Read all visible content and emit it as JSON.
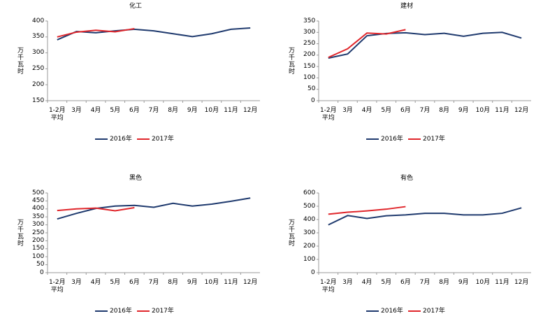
{
  "chart_data": [
    {
      "type": "line",
      "title": "化工",
      "y_label": "万千瓦时",
      "categories": [
        "1-2月 平均",
        "3月",
        "4月",
        "5月",
        "6月",
        "7月",
        "8月",
        "9月",
        "10月",
        "11月",
        "12月"
      ],
      "series": [
        {
          "name": "2016年",
          "color": "#1f3a6e",
          "values": [
            341,
            367,
            363,
            369,
            374,
            369,
            360,
            351,
            360,
            374,
            378
          ]
        },
        {
          "name": "2017年",
          "color": "#e0262b",
          "values": [
            350,
            365,
            371,
            366,
            376,
            null,
            null,
            null,
            null,
            null,
            null
          ]
        }
      ],
      "ylim": [
        150,
        400
      ],
      "yticks": [
        150,
        200,
        250,
        300,
        350,
        400
      ]
    },
    {
      "type": "line",
      "title": "建材",
      "y_label": "万千瓦时",
      "categories": [
        "1-2月 平均",
        "3月",
        "4月",
        "5月",
        "6月",
        "7月",
        "8月",
        "9月",
        "10月",
        "11月",
        "12月"
      ],
      "series": [
        {
          "name": "2016年",
          "color": "#1f3a6e",
          "values": [
            187,
            205,
            285,
            295,
            298,
            290,
            296,
            283,
            296,
            300,
            275
          ]
        },
        {
          "name": "2017年",
          "color": "#e0262b",
          "values": [
            190,
            228,
            297,
            293,
            312,
            null,
            null,
            null,
            null,
            null,
            null
          ]
        }
      ],
      "ylim": [
        0,
        350
      ],
      "yticks": [
        0,
        50,
        100,
        150,
        200,
        250,
        300,
        350
      ]
    },
    {
      "type": "line",
      "title": "黑色",
      "y_label": "万千瓦时",
      "categories": [
        "1-2月 平均",
        "3月",
        "4月",
        "5月",
        "6月",
        "7月",
        "8月",
        "9月",
        "10月",
        "11月",
        "12月"
      ],
      "series": [
        {
          "name": "2016年",
          "color": "#1f3a6e",
          "values": [
            337,
            372,
            403,
            418,
            422,
            410,
            435,
            418,
            430,
            448,
            468
          ]
        },
        {
          "name": "2017年",
          "color": "#e0262b",
          "values": [
            390,
            400,
            405,
            388,
            408,
            null,
            null,
            null,
            null,
            null,
            null
          ]
        }
      ],
      "ylim": [
        0,
        500
      ],
      "yticks": [
        0,
        50,
        100,
        150,
        200,
        250,
        300,
        350,
        400,
        450,
        500
      ]
    },
    {
      "type": "line",
      "title": "有色",
      "y_label": "万千瓦时",
      "categories": [
        "1-2月 平均",
        "3月",
        "4月",
        "5月",
        "6月",
        "7月",
        "8月",
        "9月",
        "10月",
        "11月",
        "12月"
      ],
      "series": [
        {
          "name": "2016年",
          "color": "#1f3a6e",
          "values": [
            360,
            430,
            408,
            428,
            435,
            447,
            447,
            435,
            435,
            447,
            488
          ]
        },
        {
          "name": "2017年",
          "color": "#e0262b",
          "values": [
            440,
            455,
            465,
            478,
            497,
            null,
            null,
            null,
            null,
            null,
            null
          ]
        }
      ],
      "ylim": [
        0,
        600
      ],
      "yticks": [
        0,
        100,
        200,
        300,
        400,
        500,
        600
      ]
    }
  ]
}
